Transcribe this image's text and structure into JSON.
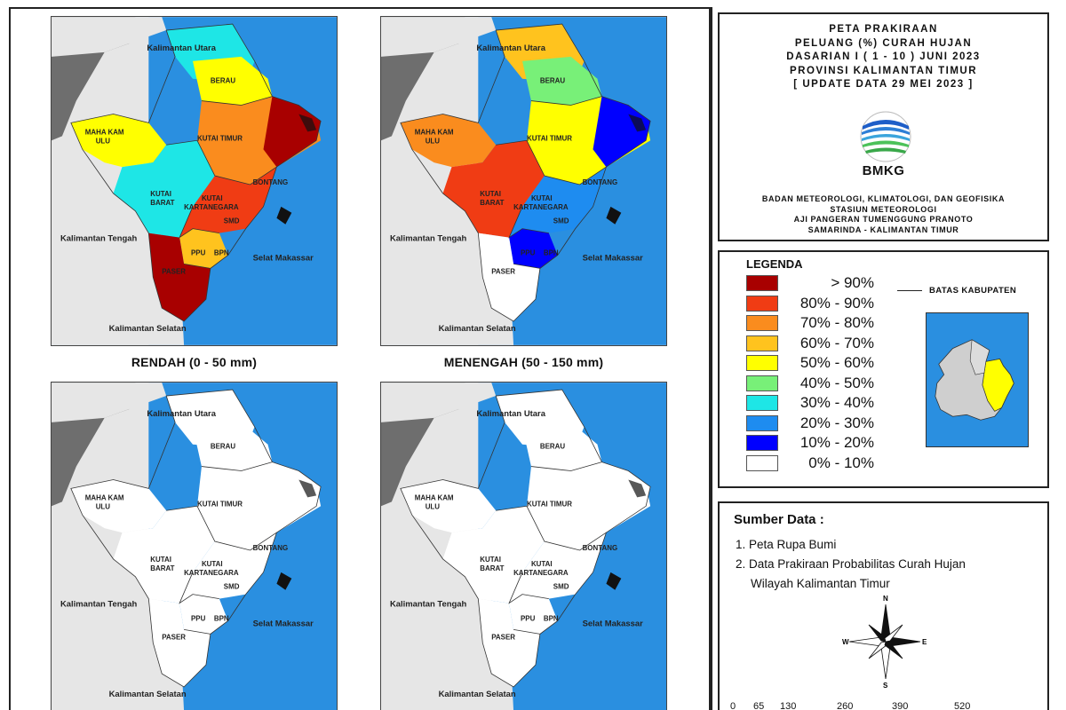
{
  "title_box": {
    "lines": [
      "PETA PRAKIRAAN",
      "PELUANG (%) CURAH HUJAN",
      "DASARIAN I ( 1 - 10 ) JUNI 2023",
      "PROVINSI KALIMANTAN TIMUR",
      "[ UPDATE DATA 29 MEI 2023 ]"
    ],
    "logo_text": "BMKG",
    "org_lines": [
      "BADAN METEOROLOGI, KLIMATOLOGI, DAN GEOFISIKA",
      "STASIUN METEOROLOGI",
      "AJI PANGERAN TUMENGGUNG PRANOTO",
      "SAMARINDA - KALIMANTAN TIMUR"
    ]
  },
  "legend": {
    "title": "LEGENDA",
    "items": [
      {
        "label": "> 90%",
        "color": "#a80000"
      },
      {
        "label": "80% - 90%",
        "color": "#f03c14"
      },
      {
        "label": "70% - 80%",
        "color": "#fa8c1e"
      },
      {
        "label": "60% - 70%",
        "color": "#ffc31e"
      },
      {
        "label": "50% - 60%",
        "color": "#ffff00"
      },
      {
        "label": "40% - 50%",
        "color": "#78f078"
      },
      {
        "label": "30% - 40%",
        "color": "#1ee6e6"
      },
      {
        "label": "20% - 30%",
        "color": "#1e8cf0"
      },
      {
        "label": "10% - 20%",
        "color": "#0000ff"
      },
      {
        "label": "0% - 10%",
        "color": "#ffffff"
      }
    ],
    "boundary_label": "BATAS KABUPATEN"
  },
  "source": {
    "title": "Sumber Data :",
    "items": [
      "1. Peta Rupa Bumi",
      "2. Data Prakiraan Probabilitas Curah Hujan"
    ],
    "item_continuation": "Wilayah Kalimantan Timur",
    "compass": {
      "n": "N",
      "s": "S",
      "e": "E",
      "w": "W"
    },
    "scale_ticks": [
      "0",
      "65",
      "130",
      "260",
      "390",
      "520"
    ]
  },
  "colors": {
    "ocean": "#2a8fe0",
    "land_outside": "#e6e6e6",
    "neighbor_dark": "#6e6e6e"
  },
  "maps": [
    {
      "title": "RENDAH (0 - 50 mm)",
      "fill": {
        "north": "#1ee6e6",
        "berau": "#ffff00",
        "kutai_timur": "#fa8c1e",
        "east_coast": "#a80000",
        "mahakam": "#ffff00",
        "kutai_barat": "#1ee6e6",
        "kartanegara": "#f03c14",
        "ppu": "#ffc31e",
        "paser": "#a80000"
      },
      "labels": {
        "kaltara": "Kalimantan Utara",
        "kalteng": "Kalimantan Tengah",
        "kalsel": "Kalimantan Selatan",
        "sea": "Selat Makassar",
        "berau": "BERAU",
        "mahakam1": "MAHA KAM",
        "mahakam2": "ULU",
        "kutim": "KUTAI TIMUR",
        "bontang": "BONTANG",
        "kubar1": "KUTAI",
        "kubar2": "BARAT",
        "kukar1": "KUTAI",
        "kukar2": "KARTANEGARA",
        "smd": "SMD",
        "ppu": "PPU",
        "bpn": "BPN",
        "paser": "PASER"
      }
    },
    {
      "title": "MENENGAH (50 - 150 mm)",
      "fill": {
        "north": "#ffc31e",
        "berau": "#78f078",
        "kutai_timur": "#ffff00",
        "east_coast": "#0000ff",
        "mahakam": "#fa8c1e",
        "kutai_barat": "#f03c14",
        "kartanegara": "#1e8cf0",
        "ppu": "#0000ff",
        "paser": "#ffffff"
      },
      "labels": {
        "kaltara": "Kalimantan Utara",
        "kalteng": "Kalimantan Tengah",
        "kalsel": "Kalimantan Selatan",
        "sea": "Selat Makassar",
        "berau": "BERAU",
        "mahakam1": "MAHA KAM",
        "mahakam2": "ULU",
        "kutim": "KUTAI TIMUR",
        "bontang": "BONTANG",
        "kubar1": "KUTAI",
        "kubar2": "BARAT",
        "kukar1": "KUTAI",
        "kukar2": "KARTANEGARA",
        "smd": "SMD",
        "ppu": "PPU",
        "bpn": "BPN",
        "paser": "PASER"
      }
    },
    {
      "title": "",
      "fill": {
        "north": "#ffffff",
        "berau": "#ffffff",
        "kutai_timur": "#ffffff",
        "east_coast": "#ffffff",
        "mahakam": "#ffffff",
        "kutai_barat": "#ffffff",
        "kartanegara": "#ffffff",
        "ppu": "#ffffff",
        "paser": "#ffffff"
      },
      "labels": {
        "kaltara": "Kalimantan Utara",
        "kalteng": "Kalimantan Tengah",
        "kalsel": "Kalimantan Selatan",
        "sea": "Selat Makassar",
        "berau": "BERAU",
        "mahakam1": "MAHA KAM",
        "mahakam2": "ULU",
        "kutim": "KUTAI TIMUR",
        "bontang": "BONTANG",
        "kubar1": "KUTAI",
        "kubar2": "BARAT",
        "kukar1": "KUTAI",
        "kukar2": "KARTANEGARA",
        "smd": "SMD",
        "ppu": "PPU",
        "bpn": "BPN",
        "paser": "PASER"
      }
    },
    {
      "title": "",
      "fill": {
        "north": "#ffffff",
        "berau": "#ffffff",
        "kutai_timur": "#ffffff",
        "east_coast": "#ffffff",
        "mahakam": "#ffffff",
        "kutai_barat": "#ffffff",
        "kartanegara": "#ffffff",
        "ppu": "#ffffff",
        "paser": "#ffffff"
      },
      "labels": {
        "kaltara": "Kalimantan Utara",
        "kalteng": "Kalimantan Tengah",
        "kalsel": "Kalimantan Selatan",
        "sea": "Selat Makassar",
        "berau": "BERAU",
        "mahakam1": "MAHA KAM",
        "mahakam2": "ULU",
        "kutim": "KUTAI TIMUR",
        "bontang": "BONTANG",
        "kubar1": "KUTAI",
        "kubar2": "BARAT",
        "kukar1": "KUTAI",
        "kukar2": "KARTANEGARA",
        "smd": "SMD",
        "ppu": "PPU",
        "bpn": "BPN",
        "paser": "PASER"
      }
    }
  ]
}
